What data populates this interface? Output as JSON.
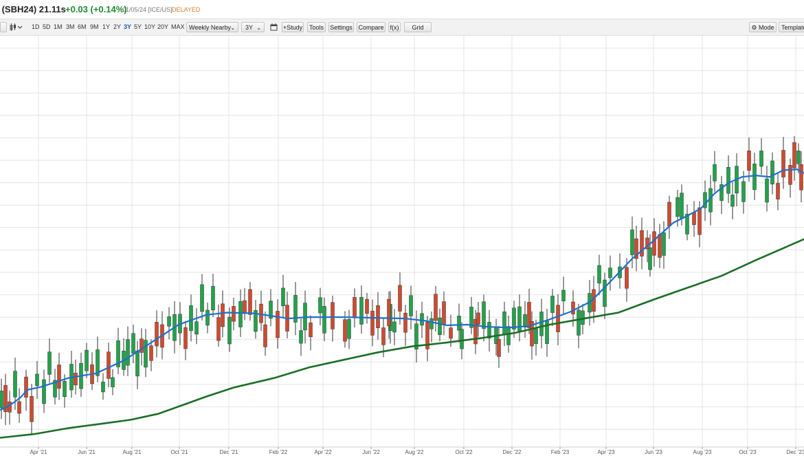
{
  "header": {
    "symbol": " (SBH24) 21.11s",
    "change": "+0.03 (+0.14%)",
    "date": "01/05/24 [ICE/US]",
    "status": "DELAYED"
  },
  "toolbar": {
    "periods": [
      "1D",
      "5D",
      "1M",
      "3M",
      "6M",
      "9M",
      "1Y",
      "2Y",
      "3Y",
      "5Y",
      "10Y",
      "20Y",
      "MAX"
    ],
    "active_period": "3Y",
    "aggregation": "Weekly Nearby",
    "range": "3Y",
    "study_label": "+Study",
    "tools_label": "Tools",
    "settings_label": "Settings",
    "compare_label": "Compare",
    "fx_label": "f(x)",
    "grid_label": "Grid",
    "mode_label": "Mode",
    "template_label": "Template",
    "mode_icon": "gear-icon",
    "calendar_icon": "calendar-icon"
  },
  "chart_data": {
    "type": "candlestick",
    "x_labels": [
      "Apr '21",
      "Jun '21",
      "Aug '21",
      "Oct '21",
      "Dec '21",
      "Feb '22",
      "Apr '22",
      "Jun '22",
      "Aug '22",
      "Oct '22",
      "Dec '22",
      "Feb '23",
      "Apr '23",
      "Jun '23",
      "Aug '23",
      "Oct '23",
      "Dec '23"
    ],
    "grid": true,
    "colors": {
      "up": "#21a34a",
      "down": "#d14a2e",
      "ma_short": "#1e6fcc",
      "ma_long": "#1a6e25"
    },
    "series": [
      {
        "type": "moving-average",
        "points": [
          [
            0,
            16.2
          ],
          [
            10,
            16.6
          ],
          [
            20,
            17.2
          ],
          [
            30,
            17.9
          ],
          [
            40,
            18.9
          ],
          [
            60,
            19.3
          ],
          [
            100,
            20.5
          ],
          [
            140,
            21.1
          ],
          [
            180,
            22.8
          ],
          [
            230,
            25.8
          ],
          [
            260,
            27.6
          ],
          [
            300,
            28.9
          ],
          [
            330,
            29.2
          ],
          [
            370,
            29.1
          ],
          [
            400,
            28.7
          ],
          [
            420,
            28.4
          ],
          [
            445,
            28.6
          ],
          [
            500,
            28.6
          ],
          [
            545,
            28.5
          ],
          [
            590,
            28.4
          ],
          [
            620,
            28.1
          ],
          [
            650,
            27.5
          ],
          [
            680,
            27.6
          ],
          [
            710,
            27.3
          ],
          [
            740,
            27.2
          ],
          [
            770,
            27.4
          ],
          [
            800,
            28.3
          ],
          [
            830,
            29.3
          ],
          [
            860,
            30.7
          ],
          [
            890,
            33.5
          ],
          [
            920,
            36.4
          ],
          [
            950,
            38.7
          ],
          [
            980,
            41.2
          ],
          [
            1000,
            42.1
          ],
          [
            1020,
            43.1
          ],
          [
            1040,
            45.1
          ],
          [
            1060,
            46.5
          ],
          [
            1080,
            47.3
          ],
          [
            1100,
            47.5
          ],
          [
            1120,
            47.3
          ],
          [
            1140,
            48.2
          ],
          [
            1160,
            48.3
          ],
          [
            1170,
            47.8
          ]
        ]
      },
      {
        "type": "moving-average",
        "points": [
          [
            0,
            12.5
          ],
          [
            50,
            13.0
          ],
          [
            100,
            13.8
          ],
          [
            150,
            14.4
          ],
          [
            190,
            14.9
          ],
          [
            230,
            15.7
          ],
          [
            270,
            17.0
          ],
          [
            300,
            18.0
          ],
          [
            340,
            19.2
          ],
          [
            400,
            20.5
          ],
          [
            450,
            21.9
          ],
          [
            500,
            22.9
          ],
          [
            550,
            23.9
          ],
          [
            600,
            24.7
          ],
          [
            650,
            25.2
          ],
          [
            700,
            25.8
          ],
          [
            750,
            26.5
          ],
          [
            800,
            27.6
          ],
          [
            850,
            28.4
          ],
          [
            900,
            29.2
          ],
          [
            950,
            30.9
          ],
          [
            1000,
            32.5
          ],
          [
            1050,
            34.1
          ],
          [
            1100,
            36.2
          ],
          [
            1140,
            37.8
          ],
          [
            1170,
            39.0
          ]
        ]
      },
      {
        "type": "candles",
        "up_x": [
          2,
          22,
          54,
          64,
          72,
          80,
          94,
          104,
          118,
          126,
          142,
          150,
          164,
          172,
          180,
          186,
          194,
          200,
          212,
          246,
          254,
          262,
          278,
          286,
          294,
          302,
          310,
          334,
          350,
          372,
          394,
          412,
          430,
          438,
          444,
          466,
          472,
          508,
          526,
          568,
          574,
          598,
          606,
          614,
          628,
          640,
          668,
          672,
          686,
          704,
          712,
          722,
          734,
          740,
          748,
          756,
          764,
          780,
          788,
          796,
          804,
          820,
          842,
          848,
          858,
          872,
          880,
          888,
          902,
          920,
          946,
          966,
          986,
          992,
          1000,
          1026,
          1034,
          1040,
          1050,
          1060,
          1066,
          1072,
          1082,
          1098,
          1108,
          1116,
          1124,
          1162
        ],
        "down_x": [
          8,
          14,
          28,
          38,
          46,
          86,
          110,
          134,
          158,
          206,
          220,
          228,
          236,
          270,
          318,
          324,
          340,
          356,
          364,
          380,
          386,
          404,
          418,
          452,
          484,
          502,
          516,
          534,
          542,
          550,
          558,
          566,
          582,
          590,
          622,
          634,
          646,
          656,
          692,
          696,
          726,
          770,
          774,
          812,
          834,
          864,
          912,
          926,
          934,
          942,
          952,
          960,
          974,
          1010,
          1018,
          1090,
          1132,
          1140,
          1150,
          1156,
          1166
        ]
      }
    ]
  }
}
